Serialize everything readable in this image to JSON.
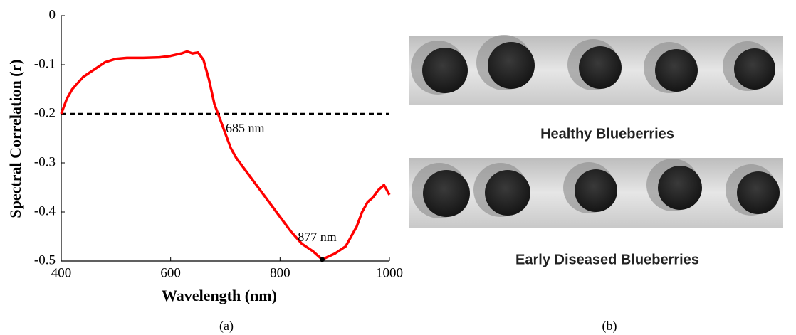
{
  "chart_data": {
    "type": "line",
    "xlabel": "Wavelength  (nm)",
    "ylabel": "Spectral  Correlation (r)",
    "x": [
      400,
      410,
      420,
      440,
      460,
      480,
      500,
      520,
      550,
      580,
      600,
      620,
      630,
      640,
      650,
      660,
      670,
      680,
      690,
      700,
      710,
      720,
      740,
      760,
      780,
      800,
      820,
      840,
      860,
      870,
      877,
      890,
      900,
      920,
      930,
      940,
      950,
      960,
      970,
      980,
      990,
      1000
    ],
    "series": [
      {
        "color": "#ff0000",
        "values": [
          -0.2,
          -0.17,
          -0.15,
          -0.125,
          -0.11,
          -0.095,
          -0.088,
          -0.086,
          -0.086,
          -0.085,
          -0.082,
          -0.077,
          -0.073,
          -0.077,
          -0.075,
          -0.09,
          -0.13,
          -0.18,
          -0.21,
          -0.24,
          -0.27,
          -0.29,
          -0.32,
          -0.35,
          -0.38,
          -0.41,
          -0.44,
          -0.465,
          -0.48,
          -0.49,
          -0.497,
          -0.49,
          -0.485,
          -0.47,
          -0.45,
          -0.43,
          -0.4,
          -0.38,
          -0.37,
          -0.355,
          -0.345,
          -0.365
        ]
      }
    ],
    "threshold": -0.2,
    "annotations": [
      {
        "text": "685 nm",
        "x": 685
      },
      {
        "text": "877 nm",
        "x": 877
      }
    ],
    "xlim": [
      400,
      1000
    ],
    "ylim": [
      -0.5,
      0
    ],
    "xticks": [
      400,
      600,
      800,
      1000
    ],
    "yticks": [
      0,
      -0.1,
      -0.2,
      -0.3,
      -0.4,
      -0.5
    ]
  },
  "panel_b": {
    "healthy_label": "Healthy Blueberries",
    "diseased_label": "Early Diseased Blueberries"
  },
  "captions": [
    "(a)",
    "(b)"
  ]
}
